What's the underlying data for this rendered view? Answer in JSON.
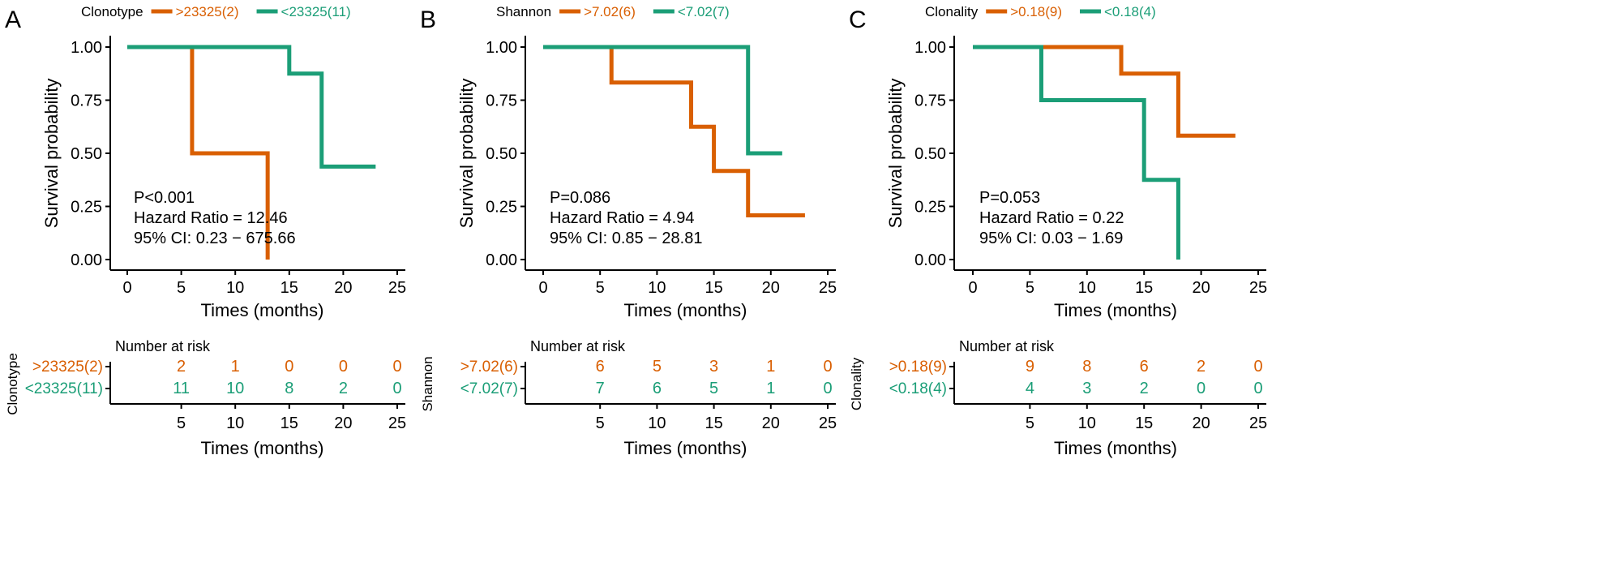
{
  "figure": {
    "colors": {
      "high": "#D95F02",
      "low": "#1B9E77",
      "axis": "#000000"
    },
    "x_axis_label": "Times (months)",
    "y_axis_label": "Survival probability",
    "risk_table_title": "Number at risk"
  },
  "chart_data": [
    {
      "type": "line",
      "step": true,
      "panel_letter": "A",
      "legend_title": "Clonotype",
      "legend_position": "top",
      "xlabel": "Times (months)",
      "ylabel": "Survival probability",
      "xlim": [
        0,
        25
      ],
      "ylim": [
        0,
        1
      ],
      "xticks": [
        0,
        5,
        10,
        15,
        20,
        25
      ],
      "yticks": [
        0,
        0.25,
        0.5,
        0.75,
        1.0
      ],
      "ytick_labels": [
        "0.00",
        "0.25",
        "0.50",
        "0.75",
        "1.00"
      ],
      "grid": false,
      "series": [
        {
          "name": ">23325(2)",
          "color": "#D95F02",
          "x": [
            0,
            6,
            13
          ],
          "y": [
            1.0,
            0.5,
            0.0
          ],
          "end": 13
        },
        {
          "name": "<23325(11)",
          "color": "#1B9E77",
          "x": [
            0,
            15,
            18
          ],
          "y": [
            1.0,
            0.875,
            0.4375
          ],
          "end": 23
        }
      ],
      "annotations": {
        "p_value": "P<0.001",
        "hazard_ratio": "Hazard Ratio = 12.46",
        "ci": "95% CI: 0.23 − 675.66"
      },
      "risk_table": {
        "title": "Number at risk",
        "ylabel": "Clonotype",
        "times": [
          5,
          10,
          15,
          20,
          25
        ],
        "time_labels": [
          "5",
          "10",
          "15",
          "20",
          "25"
        ],
        "xlabel": "Times (months)",
        "rows": [
          {
            "label": ">23325(2)",
            "color": "#D95F02",
            "counts": [
              "2",
              "1",
              "0",
              "0",
              "0"
            ]
          },
          {
            "label": "<23325(11)",
            "color": "#1B9E77",
            "counts": [
              "11",
              "10",
              "8",
              "2",
              "0"
            ]
          }
        ]
      }
    },
    {
      "type": "line",
      "step": true,
      "panel_letter": "B",
      "legend_title": "Shannon",
      "legend_position": "top",
      "xlabel": "Times (months)",
      "ylabel": "Survival probability",
      "xlim": [
        0,
        25
      ],
      "ylim": [
        0,
        1
      ],
      "xticks": [
        0,
        5,
        10,
        15,
        20,
        25
      ],
      "yticks": [
        0,
        0.25,
        0.5,
        0.75,
        1.0
      ],
      "ytick_labels": [
        "0.00",
        "0.25",
        "0.50",
        "0.75",
        "1.00"
      ],
      "grid": false,
      "series": [
        {
          "name": ">7.02(6)",
          "color": "#D95F02",
          "x": [
            0,
            6,
            13,
            15,
            18
          ],
          "y": [
            1.0,
            0.833,
            0.625,
            0.417,
            0.208
          ],
          "end": 23
        },
        {
          "name": "<7.02(7)",
          "color": "#1B9E77",
          "x": [
            0,
            18
          ],
          "y": [
            1.0,
            0.5
          ],
          "end": 21
        }
      ],
      "annotations": {
        "p_value": "P=0.086",
        "hazard_ratio": "Hazard Ratio = 4.94",
        "ci": "95% CI: 0.85 − 28.81"
      },
      "risk_table": {
        "title": "Number at risk",
        "ylabel": "Shannon",
        "times": [
          5,
          10,
          15,
          20,
          25
        ],
        "time_labels": [
          "5",
          "10",
          "15",
          "20",
          "25"
        ],
        "xlabel": "Times (months)",
        "rows": [
          {
            "label": ">7.02(6)",
            "color": "#D95F02",
            "counts": [
              "6",
              "5",
              "3",
              "1",
              "0"
            ]
          },
          {
            "label": "<7.02(7)",
            "color": "#1B9E77",
            "counts": [
              "7",
              "6",
              "5",
              "1",
              "0"
            ]
          }
        ]
      }
    },
    {
      "type": "line",
      "step": true,
      "panel_letter": "C",
      "legend_title": "Clonality",
      "legend_position": "top",
      "xlabel": "Times (months)",
      "ylabel": "Survival probability",
      "xlim": [
        0,
        25
      ],
      "ylim": [
        0,
        1
      ],
      "xticks": [
        0,
        5,
        10,
        15,
        20,
        25
      ],
      "yticks": [
        0,
        0.25,
        0.5,
        0.75,
        1.0
      ],
      "ytick_labels": [
        "0.00",
        "0.25",
        "0.50",
        "0.75",
        "1.00"
      ],
      "grid": false,
      "series": [
        {
          "name": ">0.18(9)",
          "color": "#D95F02",
          "x": [
            0,
            13,
            18
          ],
          "y": [
            1.0,
            0.875,
            0.583
          ],
          "end": 23
        },
        {
          "name": "<0.18(4)",
          "color": "#1B9E77",
          "x": [
            0,
            6,
            15,
            18
          ],
          "y": [
            1.0,
            0.75,
            0.375,
            0.0
          ],
          "end": 18
        }
      ],
      "annotations": {
        "p_value": "P=0.053",
        "hazard_ratio": "Hazard Ratio = 0.22",
        "ci": "95% CI: 0.03 − 1.69"
      },
      "risk_table": {
        "title": "Number at risk",
        "ylabel": "Clonality",
        "times": [
          5,
          10,
          15,
          20,
          25
        ],
        "time_labels": [
          "5",
          "10",
          "15",
          "20",
          "25"
        ],
        "xlabel": "Times (months)",
        "rows": [
          {
            "label": ">0.18(9)",
            "color": "#D95F02",
            "counts": [
              "9",
              "8",
              "6",
              "2",
              "0"
            ]
          },
          {
            "label": "<0.18(4)",
            "color": "#1B9E77",
            "counts": [
              "4",
              "3",
              "2",
              "0",
              "0"
            ]
          }
        ]
      }
    }
  ]
}
